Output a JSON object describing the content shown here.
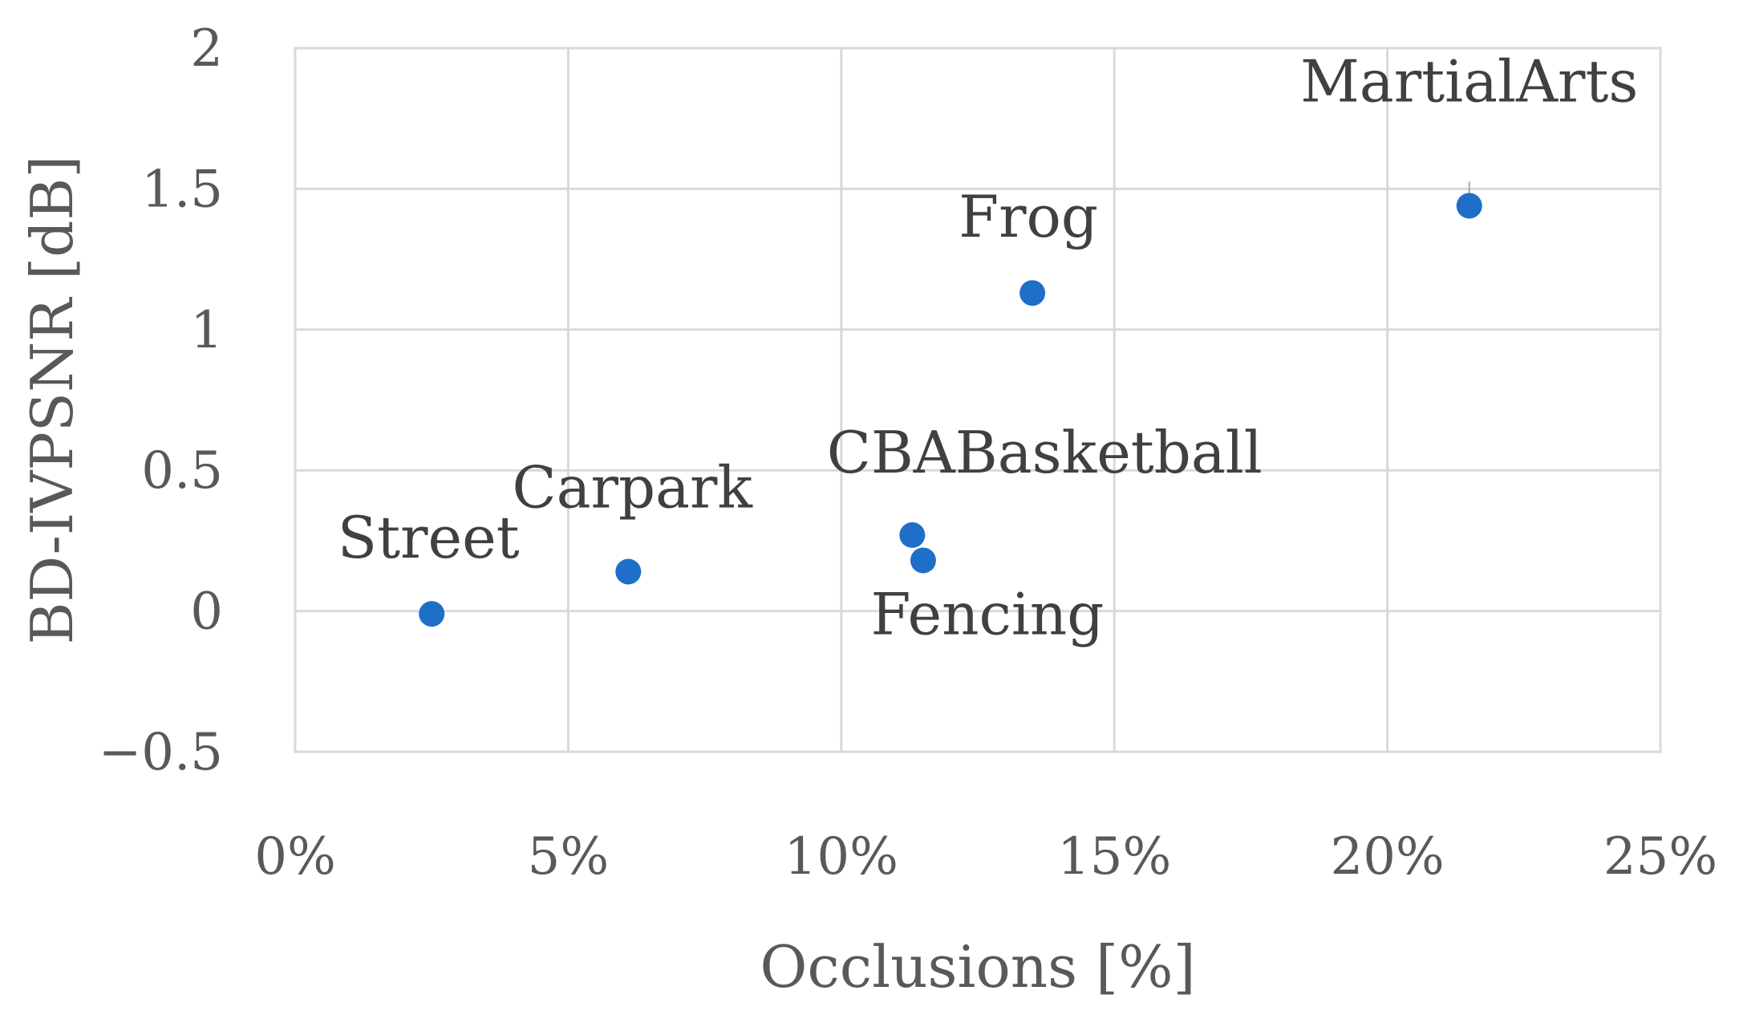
{
  "chart_data": {
    "type": "scatter",
    "xlabel": "Occlusions [%]",
    "ylabel": "BD-IVPSNR [dB]",
    "xlim": [
      0,
      25
    ],
    "ylim": [
      -0.5,
      2
    ],
    "x_ticks": [
      "0%",
      "5%",
      "10%",
      "15%",
      "20%",
      "25%"
    ],
    "x_tick_values": [
      0,
      5,
      10,
      15,
      20,
      25
    ],
    "y_ticks": [
      "−0.5",
      "0",
      "0.5",
      "1",
      "1.5",
      "2"
    ],
    "y_tick_values": [
      -0.5,
      0,
      0.5,
      1,
      1.5,
      2
    ],
    "grid": true,
    "marker_color": "#1f6fc8",
    "points": [
      {
        "label": "Street",
        "x": 2.5,
        "y": -0.01,
        "label_position": "above-left"
      },
      {
        "label": "Carpark",
        "x": 6.1,
        "y": 0.14,
        "label_position": "above"
      },
      {
        "label": "CBABasketball",
        "x": 11.3,
        "y": 0.27,
        "label_position": "above-right"
      },
      {
        "label": "Fencing",
        "x": 11.5,
        "y": 0.18,
        "label_position": "below"
      },
      {
        "label": "Frog",
        "x": 13.5,
        "y": 1.13,
        "label_position": "above"
      },
      {
        "label": "MartialArts",
        "x": 21.5,
        "y": 1.44,
        "label_position": "above"
      }
    ]
  }
}
